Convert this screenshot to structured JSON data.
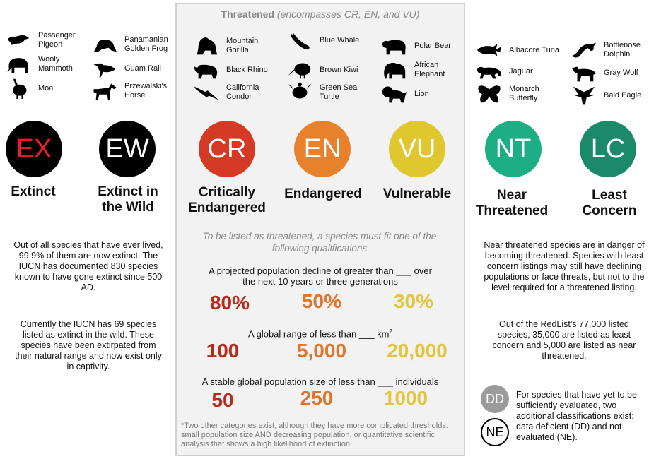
{
  "threatened_header": {
    "bold": "Threatened",
    "italic": "(encompasses CR, EN, and VU)"
  },
  "animals": {
    "passenger_pigeon": "Passenger Pigeon",
    "wooly_mammoth": "Wooly Mammoth",
    "moa": "Moa",
    "panamanian_golden_frog": "Panamanian Golden Frog",
    "guam_rail": "Guam Rail",
    "przewalskis_horse": "Przewalski's Horse",
    "mountain_gorilla": "Mountain Gorilla",
    "black_rhino": "Black Rhino",
    "california_condor": "California Condor",
    "blue_whale": "Blue Whale",
    "brown_kiwi": "Brown Kiwi",
    "green_sea_turtle": "Green Sea Turtle",
    "polar_bear": "Polar Bear",
    "african_elephant": "African Elephant",
    "lion": "Lion",
    "albacore_tuna": "Albacore Tuna",
    "jaguar": "Jaguar",
    "monarch_butterfly": "Monarch Butterfly",
    "bottlenose_dolphin": "Bottlenose Dolphin",
    "gray_wolf": "Gray Wolf",
    "bald_eagle": "Bald Eagle"
  },
  "categories": {
    "ex": {
      "code": "EX",
      "label": "Extinct",
      "color": "#000000",
      "text_color": "#ee1c24"
    },
    "ew": {
      "code": "EW",
      "label": "Extinct in the Wild",
      "color": "#000000",
      "text_color": "#ffffff"
    },
    "cr": {
      "code": "CR",
      "label": "Critically Endangered",
      "color": "#d43a26"
    },
    "en": {
      "code": "EN",
      "label": "Endangered",
      "color": "#e8812c"
    },
    "vu": {
      "code": "VU",
      "label": "Vulnerable",
      "color": "#e1c72f"
    },
    "nt": {
      "code": "NT",
      "label": "Near Threatened",
      "color": "#1eae86"
    },
    "lc": {
      "code": "LC",
      "label": "Least Concern",
      "color": "#1a8a6b"
    }
  },
  "text": {
    "extinct_p1": "Out of all species that have ever lived, 99.9% of them are now extinct.  The IUCN has documented 830 species known to have gone extinct since 500 AD.",
    "extinct_p2": "Currently the IUCN has 69 species listed as extinct in the wild. These species have been extirpated from their natural range and now exist only in captivity.",
    "near_p1": "Near threatened species are in danger of becoming threatened. Species with least concern listings may still have declining populations or face threats, but not to the level required for a threatened listing.",
    "near_p2": "Out of the RedList's 77,000 listed species, 35,000 are listed as least concern and 5,000 are listed as near threatened.",
    "qual_intro": "To be listed as threatened, a species must fit one of the following qualifications",
    "q1": "A projected population decline of greater than ___ over the next 10 years or three generations",
    "q2": "A global range of less than ___ km",
    "q2_sup": "2",
    "q3": "A stable global population size of less than ___ individuals",
    "footnote": "*Two other categories exist, although they have more complicated thresholds: small population size AND decreasing population, or quantitative scientific analysis that shows a high likelihood of extinction.",
    "dd_note": "For species that have yet to be sufficiently evaluated, two additional classifications exist: data deficient (DD) and not evaluated (NE)."
  },
  "thresholds": {
    "decline": {
      "cr": "80%",
      "en": "50%",
      "vu": "30%"
    },
    "range": {
      "cr": "100",
      "en": "5,000",
      "vu": "20,000"
    },
    "population": {
      "cr": "50",
      "en": "250",
      "vu": "1000"
    }
  },
  "threshold_colors": {
    "cr": "#b92a1c",
    "en": "#e0742a",
    "vu": "#e2c53a"
  },
  "extra": {
    "dd": {
      "code": "DD",
      "color": "#9b9b9b"
    },
    "ne": {
      "code": "NE"
    }
  }
}
